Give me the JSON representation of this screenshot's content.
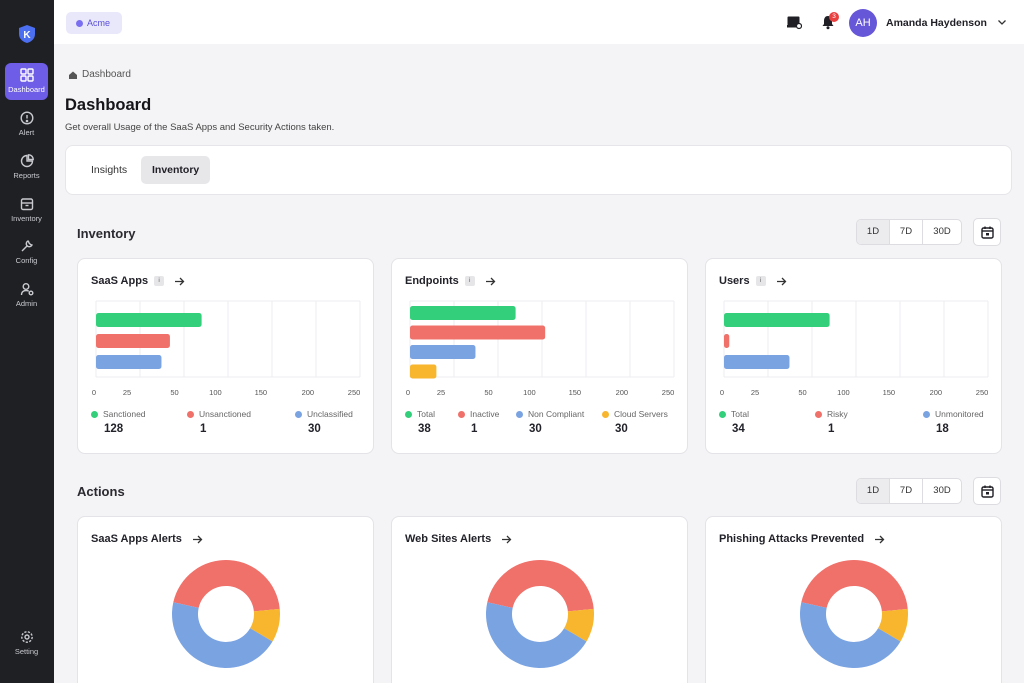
{
  "app": {
    "org_name": "Acme",
    "user": {
      "initials": "AH",
      "name": "Amanda Haydenson"
    },
    "notification_count": "3",
    "icon_names": [
      "brand-logo-icon",
      "dashboard-icon",
      "alert-icon",
      "reports-icon",
      "inventory-icon",
      "config-icon",
      "admin-icon",
      "setting-icon",
      "messages-icon",
      "bell-icon",
      "chevron-down-icon",
      "home-icon",
      "arrow-right-icon",
      "calendar-icon"
    ]
  },
  "sidebar": {
    "items": [
      {
        "label": "Dashboard",
        "icon": "dashboard-icon",
        "active": true
      },
      {
        "label": "Alert",
        "icon": "alert-icon"
      },
      {
        "label": "Reports",
        "icon": "reports-icon"
      },
      {
        "label": "Inventory",
        "icon": "inventory-icon"
      },
      {
        "label": "Config",
        "icon": "config-icon"
      },
      {
        "label": "Admin",
        "icon": "admin-icon"
      }
    ],
    "bottom": {
      "label": "Setting",
      "icon": "setting-icon"
    }
  },
  "header": {
    "breadcrumb": "Dashboard",
    "title": "Dashboard",
    "subtitle": "Get overall Usage of the SaaS Apps and Security Actions taken."
  },
  "tabs": [
    {
      "label": "Insights",
      "active": false
    },
    {
      "label": "Inventory",
      "active": true
    }
  ],
  "colors": {
    "green": "#34cf7a",
    "red": "#f0706a",
    "blue": "#7aa3e2",
    "orange": "#f8b62e",
    "accent": "#6e5de6"
  },
  "inventory": {
    "title": "Inventory",
    "ranges": [
      "1D",
      "7D",
      "30D"
    ],
    "cards": [
      {
        "title": "SaaS Apps",
        "info": "i",
        "items": [
          {
            "label": "Sanctioned",
            "value": "128",
            "color": "#34cf7a"
          },
          {
            "label": "Unsanctioned",
            "value": "1",
            "color": "#f0706a"
          },
          {
            "label": "Unclassified",
            "value": "30",
            "color": "#7aa3e2"
          }
        ]
      },
      {
        "title": "Endpoints",
        "info": "i",
        "items": [
          {
            "label": "Total",
            "value": "38",
            "color": "#34cf7a"
          },
          {
            "label": "Inactive",
            "value": "1",
            "color": "#f0706a"
          },
          {
            "label": "Non Compliant",
            "value": "30",
            "color": "#7aa3e2"
          },
          {
            "label": "Cloud Servers",
            "value": "30",
            "color": "#f8b62e"
          }
        ]
      },
      {
        "title": "Users",
        "info": "i",
        "items": [
          {
            "label": "Total",
            "value": "34",
            "color": "#34cf7a"
          },
          {
            "label": "Risky",
            "value": "1",
            "color": "#f0706a"
          },
          {
            "label": "Unmonitored",
            "value": "18",
            "color": "#7aa3e2"
          }
        ]
      }
    ]
  },
  "actions": {
    "title": "Actions",
    "ranges": [
      "1D",
      "7D",
      "30D"
    ],
    "cards": [
      {
        "title": "SaaS Apps Alerts"
      },
      {
        "title": "Web Sites Alerts"
      },
      {
        "title": "Phishing Attacks Prevented"
      }
    ]
  },
  "chart_data": [
    {
      "type": "bar",
      "orientation": "horizontal",
      "categories": [
        "Sanctioned",
        "Unsanctioned",
        "Unclassified"
      ],
      "values": [
        100,
        70,
        62
      ],
      "colors": [
        "#34cf7a",
        "#f0706a",
        "#7aa3e2"
      ],
      "xlim": [
        0,
        250
      ],
      "ticks": [
        "0",
        "25",
        "50",
        "100",
        "150",
        "200",
        "250"
      ]
    },
    {
      "type": "bar",
      "orientation": "horizontal",
      "categories": [
        "Total",
        "Inactive",
        "Non Compliant",
        "Cloud Servers"
      ],
      "values": [
        100,
        128,
        62,
        25
      ],
      "colors": [
        "#34cf7a",
        "#f0706a",
        "#7aa3e2",
        "#f8b62e"
      ],
      "xlim": [
        0,
        250
      ],
      "ticks": [
        "0",
        "25",
        "50",
        "100",
        "150",
        "200",
        "250"
      ]
    },
    {
      "type": "bar",
      "orientation": "horizontal",
      "categories": [
        "Total",
        "Risky",
        "Unmonitored"
      ],
      "values": [
        100,
        5,
        62
      ],
      "colors": [
        "#34cf7a",
        "#f0706a",
        "#7aa3e2"
      ],
      "xlim": [
        0,
        250
      ],
      "ticks": [
        "0",
        "25",
        "50",
        "100",
        "150",
        "200",
        "250"
      ]
    },
    {
      "type": "pie",
      "variant": "donut",
      "values": [
        45,
        10,
        45
      ],
      "colors": [
        "#f0706a",
        "#f8b62e",
        "#7aa3e2"
      ]
    },
    {
      "type": "pie",
      "variant": "donut",
      "values": [
        45,
        10,
        45
      ],
      "colors": [
        "#f0706a",
        "#f8b62e",
        "#7aa3e2"
      ]
    },
    {
      "type": "pie",
      "variant": "donut",
      "values": [
        45,
        10,
        45
      ],
      "colors": [
        "#f0706a",
        "#f8b62e",
        "#7aa3e2"
      ]
    }
  ]
}
